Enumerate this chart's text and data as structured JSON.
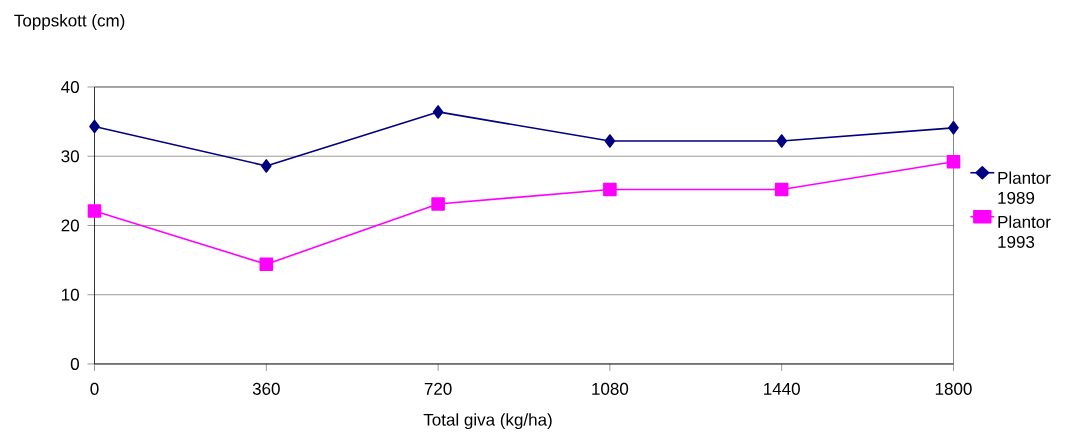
{
  "chart_data": {
    "type": "line",
    "xlabel": "Total giva (kg/ha)",
    "ylabel": "Toppskott (cm)",
    "categories": [
      "0",
      "360",
      "720",
      "1080",
      "1440",
      "1800"
    ],
    "series": [
      {
        "name": "Plantor 1989",
        "color": "#000080",
        "marker": "diamond",
        "values": [
          34.3,
          28.6,
          36.4,
          32.2,
          32.2,
          34.1
        ]
      },
      {
        "name": "Plantor 1993",
        "color": "#ff00ff",
        "marker": "square",
        "values": [
          22.1,
          14.4,
          23.1,
          25.2,
          25.2,
          29.2
        ]
      }
    ],
    "ylim": [
      0,
      40
    ],
    "yticks": [
      0,
      10,
      20,
      30,
      40
    ],
    "grid": "y",
    "legend": "right",
    "line_style": "solid"
  }
}
